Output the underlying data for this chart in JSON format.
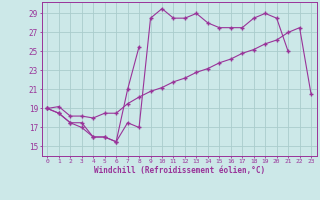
{
  "xlabel": "Windchill (Refroidissement éolien,°C)",
  "bg_color": "#cce8e8",
  "grid_color": "#aacccc",
  "line_color": "#993399",
  "xlim": [
    -0.5,
    23.5
  ],
  "ylim": [
    14.0,
    30.2
  ],
  "yticks": [
    15,
    17,
    19,
    21,
    23,
    25,
    27,
    29
  ],
  "xticks": [
    0,
    1,
    2,
    3,
    4,
    5,
    6,
    7,
    8,
    9,
    10,
    11,
    12,
    13,
    14,
    15,
    16,
    17,
    18,
    19,
    20,
    21,
    22,
    23
  ],
  "line1_x": [
    0,
    1,
    2,
    3,
    4,
    5,
    6,
    7,
    8,
    9,
    10,
    11,
    12,
    13,
    14,
    15,
    16,
    17,
    18,
    19,
    20,
    21
  ],
  "line1_y": [
    19.0,
    18.5,
    17.5,
    17.0,
    16.0,
    16.0,
    15.5,
    17.5,
    17.0,
    28.5,
    29.5,
    28.5,
    28.5,
    29.0,
    28.0,
    27.5,
    27.5,
    27.5,
    28.5,
    29.0,
    28.5,
    25.0
  ],
  "line2_x": [
    0,
    1,
    2,
    3,
    4,
    5,
    6,
    7,
    8
  ],
  "line2_y": [
    19.0,
    18.5,
    17.5,
    17.5,
    16.0,
    16.0,
    15.5,
    21.0,
    25.5
  ],
  "line3_x": [
    0,
    1,
    2,
    3,
    4,
    5,
    6,
    7,
    8,
    9,
    10,
    11,
    12,
    13,
    14,
    15,
    16,
    17,
    18,
    19,
    20,
    21,
    22,
    23
  ],
  "line3_y": [
    19.0,
    19.2,
    18.2,
    18.2,
    18.0,
    18.5,
    18.5,
    19.5,
    20.2,
    20.8,
    21.2,
    21.8,
    22.2,
    22.8,
    23.2,
    23.8,
    24.2,
    24.8,
    25.2,
    25.8,
    26.2,
    27.0,
    27.5,
    20.5
  ]
}
